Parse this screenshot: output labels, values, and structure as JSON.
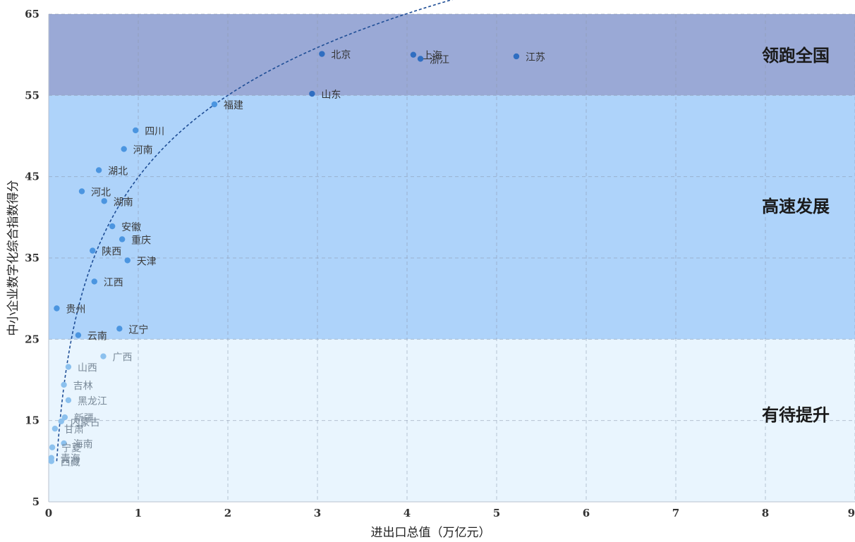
{
  "chart_data": {
    "type": "scatter",
    "xlabel": "进出口总值（万亿元）",
    "ylabel": "中小企业数字化综合指数得分",
    "xlim": [
      0,
      9
    ],
    "ylim": [
      5,
      65
    ],
    "xticks": [
      0,
      1,
      2,
      3,
      4,
      5,
      6,
      7,
      8,
      9
    ],
    "yticks": [
      5,
      15,
      25,
      35,
      45,
      55,
      65
    ],
    "grid": true,
    "zones": [
      {
        "label": "领跑全国",
        "y_from": 55,
        "y_to": 65,
        "color": "#9aa9d6",
        "point_color": "#2f6ec1",
        "label_color": "#333333"
      },
      {
        "label": "高速发展",
        "y_from": 25,
        "y_to": 55,
        "color": "#aed3fa",
        "point_color": "#4b95e0",
        "label_color": "#3a3a3a"
      },
      {
        "label": "有待提升",
        "y_from": 5,
        "y_to": 25,
        "color": "#e9f5fe",
        "point_color": "#8cc1ee",
        "label_color": "#7a8a99"
      }
    ],
    "trendline": {
      "type": "logarithmic",
      "style": "dashed",
      "color": "#1f4e96",
      "x_from": 0.09,
      "x_to": 8.35,
      "anchors": [
        [
          0.09,
          10.0
        ],
        [
          2.0,
          55.0
        ],
        [
          8.35,
          63.2
        ]
      ]
    },
    "points": [
      {
        "label": "北京",
        "x": 3.05,
        "y": 60.1
      },
      {
        "label": "上海",
        "x": 4.07,
        "y": 60.0
      },
      {
        "label": "浙江",
        "x": 4.15,
        "y": 59.5
      },
      {
        "label": "江苏",
        "x": 5.22,
        "y": 59.8
      },
      {
        "label": "山东",
        "x": 2.94,
        "y": 55.2
      },
      {
        "label": "福建",
        "x": 1.85,
        "y": 53.9
      },
      {
        "label": "四川",
        "x": 0.97,
        "y": 50.7
      },
      {
        "label": "河南",
        "x": 0.84,
        "y": 48.4
      },
      {
        "label": "湖北",
        "x": 0.56,
        "y": 45.8
      },
      {
        "label": "河北",
        "x": 0.37,
        "y": 43.2
      },
      {
        "label": "湖南",
        "x": 0.62,
        "y": 42.0
      },
      {
        "label": "安徽",
        "x": 0.71,
        "y": 38.9
      },
      {
        "label": "重庆",
        "x": 0.82,
        "y": 37.3
      },
      {
        "label": "陕西",
        "x": 0.49,
        "y": 35.9
      },
      {
        "label": "天津",
        "x": 0.88,
        "y": 34.7
      },
      {
        "label": "江西",
        "x": 0.51,
        "y": 32.1
      },
      {
        "label": "贵州",
        "x": 0.09,
        "y": 28.8
      },
      {
        "label": "辽宁",
        "x": 0.79,
        "y": 26.3
      },
      {
        "label": "云南",
        "x": 0.33,
        "y": 25.5
      },
      {
        "label": "广西",
        "x": 0.61,
        "y": 22.9
      },
      {
        "label": "山西",
        "x": 0.22,
        "y": 21.6
      },
      {
        "label": "吉林",
        "x": 0.17,
        "y": 19.4
      },
      {
        "label": "黑龙江",
        "x": 0.22,
        "y": 17.5
      },
      {
        "label": "新疆",
        "x": 0.18,
        "y": 15.4
      },
      {
        "label": "内蒙古",
        "x": 0.14,
        "y": 14.9
      },
      {
        "label": "甘肃",
        "x": 0.07,
        "y": 14.0
      },
      {
        "label": "海南",
        "x": 0.17,
        "y": 12.2
      },
      {
        "label": "宁夏",
        "x": 0.04,
        "y": 11.7
      },
      {
        "label": "青海",
        "x": 0.03,
        "y": 10.4
      },
      {
        "label": "西藏",
        "x": 0.03,
        "y": 10.0
      }
    ]
  }
}
